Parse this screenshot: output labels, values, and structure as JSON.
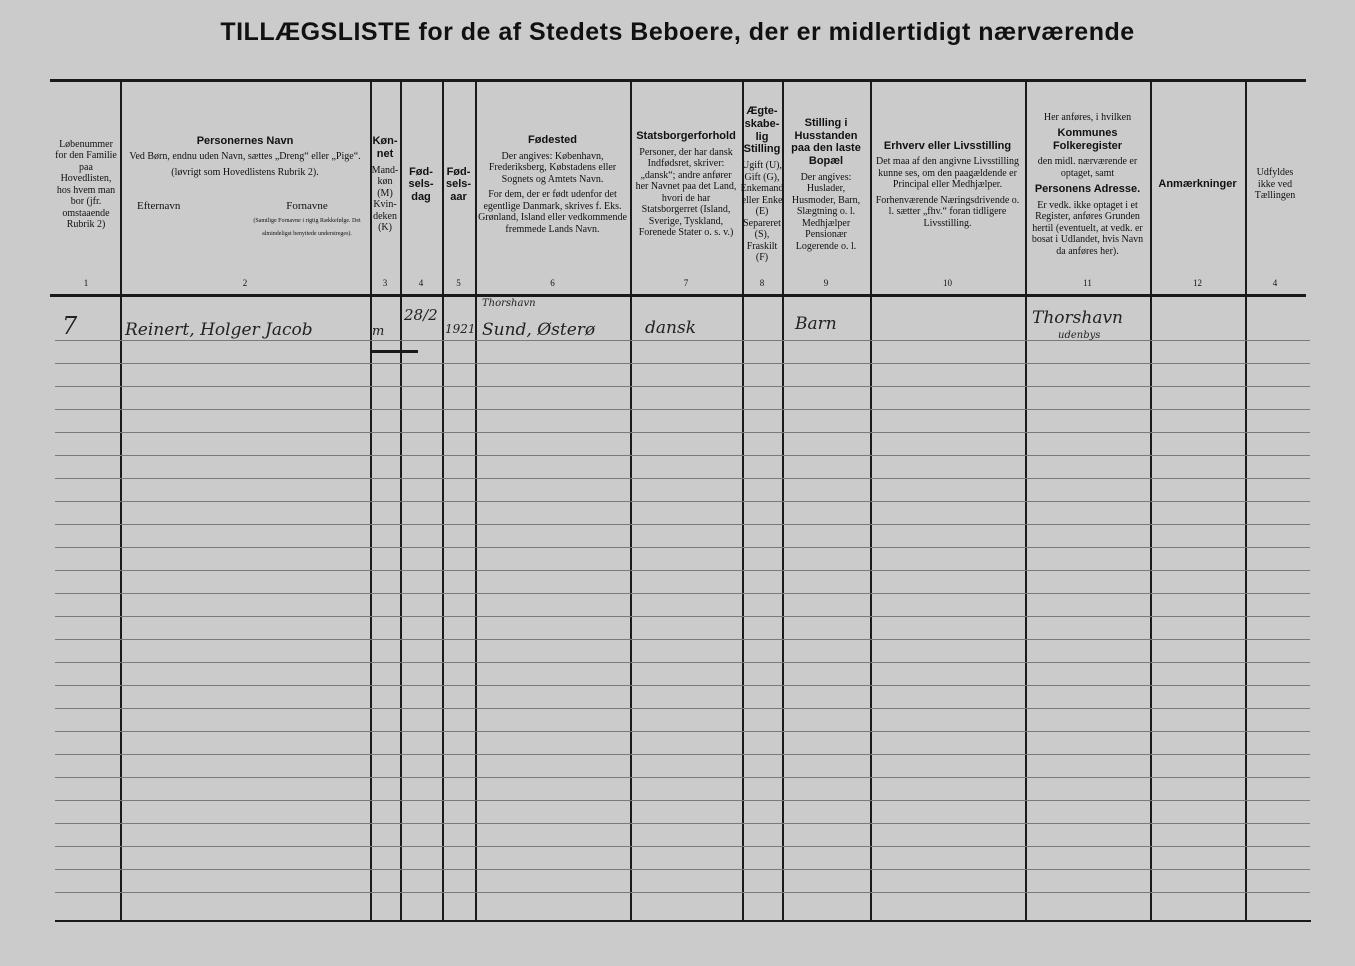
{
  "title": "TILLÆGSLISTE for de af Stedets Beboere, der er midlertidigt nærværende",
  "columns": [
    {
      "num": "1",
      "heading": "",
      "text": "Løbenummer for den Familie paa Hovedlisten, hos hvem man bor (jfr. omstaaende Rubrik 2)"
    },
    {
      "num": "2",
      "heading": "Personernes Navn",
      "text": "Ved Børn, endnu uden Navn, sættes „Dreng“ eller „Pige“.",
      "note": "(løvrigt som Hovedlistens Rubrik 2).",
      "sub_left": "Efternavn",
      "sub_right": "Fornavne",
      "sub_right_note": "(Samtlige Fornavne i rigtig Rækkefølge. Det almindeligst benyttede understreges)."
    },
    {
      "num": "3",
      "heading": "Køn-net",
      "text": "Mand-køn (M) Kvin-deken (K)"
    },
    {
      "num": "4",
      "heading": "Fød-sels-dag",
      "text": ""
    },
    {
      "num": "5",
      "heading": "Fød-sels-aar",
      "text": ""
    },
    {
      "num": "6",
      "heading": "Fødested",
      "text": "Der angives: København, Frederiksberg, Købstadens eller Sognets og Amtets Navn.",
      "note": "For dem, der er født udenfor det egentlige Danmark, skrives f. Eks. Grønland, Island eller vedkommende fremmede Lands Navn."
    },
    {
      "num": "7",
      "heading": "Statsborgerforhold",
      "text": "Personer, der har dansk Indfødsret, skriver: „dansk“; andre anfører her Navnet paa det Land, hvori de har Statsborgerret (Island, Sverige, Tyskland, Forenede Stater o. s. v.)"
    },
    {
      "num": "8",
      "heading": "Ægte-skabe-lig Stilling",
      "text": "Ugift (U), Gift (G), Enkemand eller Enke (E) Separeret (S), Fraskilt (F)"
    },
    {
      "num": "9",
      "heading": "Stilling i Husstanden paa den laste Bopæl",
      "text": "Der angives: Huslader, Husmoder, Barn, Slægtning o. l. Medhjælper Pensionær Logerende o. l."
    },
    {
      "num": "10",
      "heading": "Erhverv eller Livsstilling",
      "text": "Det maa af den angivne Livsstilling kunne ses, om den paagældende er Principal eller Medhjælper.",
      "note": "Forhenværende Næringsdrivende o. l. sætter „fhv.“ foran tidligere Livsstilling."
    },
    {
      "num": "11",
      "pre": "Her anføres, i hvilken",
      "heading": "Kommunes Folkeregister",
      "text": "den midl. nærværende er optaget, samt",
      "heading2": "Personens Adresse.",
      "note": "Er vedk. ikke optaget i et Register, anføres Grunden hertil (eventuelt, at vedk. er bosat i Udlandet, hvis Navn da anføres her)."
    },
    {
      "num": "12",
      "heading": "Anmærkninger",
      "text": ""
    },
    {
      "num": "4",
      "heading": "",
      "text": "Udfyldes ikke ved Tællingen"
    }
  ],
  "entries": [
    {
      "lobenummer": "7",
      "navn": "Reinert, Holger Jacob",
      "kon": "m",
      "fodselsdag": "28/2",
      "fodselsaar": "1921",
      "fodested_top": "Thorshavn",
      "fodested": "Sund, Østerø",
      "statsborger": "dansk",
      "stilling": "Barn",
      "erhverv": "",
      "folkeregister": "Thorshavn",
      "folkeregister_note": "udenbys"
    }
  ]
}
